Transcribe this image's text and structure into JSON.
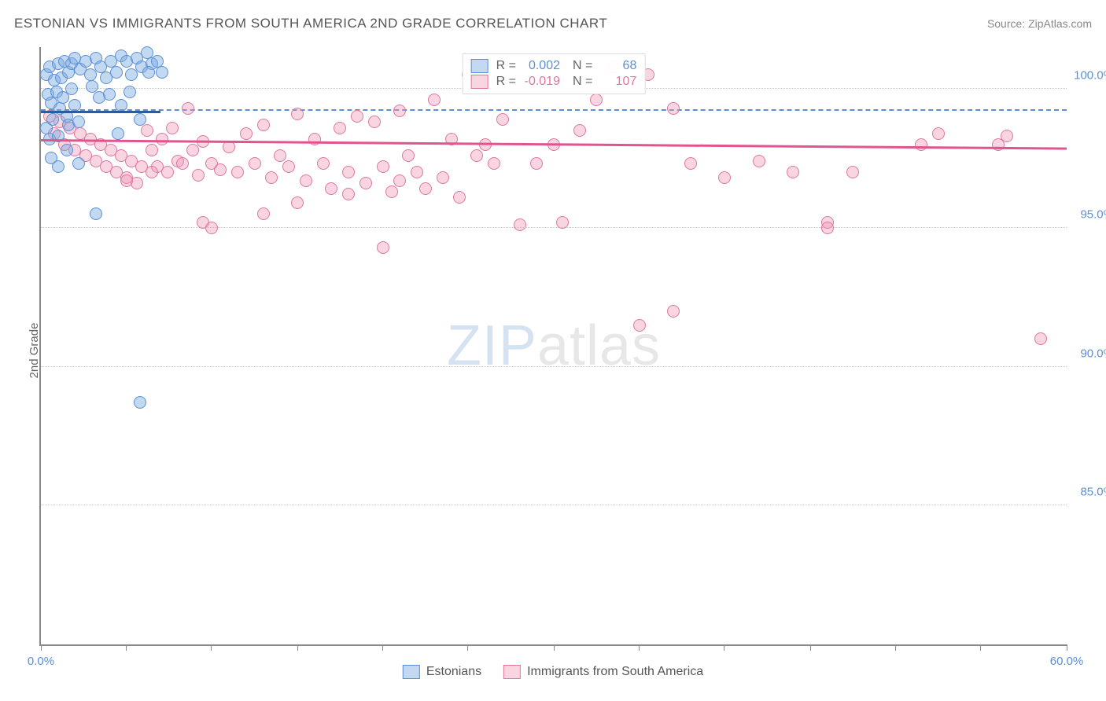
{
  "header": {
    "title": "ESTONIAN VS IMMIGRANTS FROM SOUTH AMERICA 2ND GRADE CORRELATION CHART",
    "source": "Source: ZipAtlas.com"
  },
  "ylabel": "2nd Grade",
  "watermark": {
    "zip": "ZIP",
    "atlas": "atlas"
  },
  "chart": {
    "type": "scatter",
    "xlim": [
      0,
      60
    ],
    "ylim": [
      80,
      101.5
    ],
    "xticks_pct": [
      0,
      8.3,
      16.6,
      25,
      33.3,
      41.6,
      50,
      58.3,
      66.6,
      75,
      83.3,
      91.6,
      100
    ],
    "xlabels": [
      {
        "pos_pct": 0,
        "text": "0.0%"
      },
      {
        "pos_pct": 100,
        "text": "60.0%"
      }
    ],
    "yticks": [
      {
        "value": 100,
        "text": "100.0%"
      },
      {
        "value": 95,
        "text": "95.0%"
      },
      {
        "value": 90,
        "text": "90.0%"
      },
      {
        "value": 85,
        "text": "85.0%"
      }
    ],
    "grid_color": "#cccccc",
    "background_color": "#ffffff"
  },
  "series": {
    "estonians": {
      "label": "Estonians",
      "fill": "rgba(120,170,225,0.45)",
      "stroke": "#5b8fd6",
      "trend_color": "#1f5fb0",
      "dash_color": "#5b8fd6",
      "trend": {
        "x1": 0,
        "y1": 99.2,
        "x2": 7,
        "y2": 99.2
      },
      "dash_y": 99.2,
      "points": [
        [
          0.3,
          100.5
        ],
        [
          0.5,
          100.8
        ],
        [
          0.8,
          100.3
        ],
        [
          1.0,
          100.9
        ],
        [
          1.2,
          100.4
        ],
        [
          1.4,
          101.0
        ],
        [
          1.6,
          100.6
        ],
        [
          1.8,
          100.9
        ],
        [
          2.0,
          101.1
        ],
        [
          2.3,
          100.7
        ],
        [
          2.6,
          101.0
        ],
        [
          2.9,
          100.5
        ],
        [
          3.2,
          101.1
        ],
        [
          3.5,
          100.8
        ],
        [
          3.8,
          100.4
        ],
        [
          4.1,
          101.0
        ],
        [
          4.4,
          100.6
        ],
        [
          4.7,
          101.2
        ],
        [
          5.0,
          101.0
        ],
        [
          5.3,
          100.5
        ],
        [
          5.6,
          101.1
        ],
        [
          5.9,
          100.8
        ],
        [
          6.2,
          101.3
        ],
        [
          6.5,
          100.9
        ],
        [
          6.8,
          101.0
        ],
        [
          7.1,
          100.6
        ],
        [
          0.4,
          99.8
        ],
        [
          0.6,
          99.5
        ],
        [
          0.9,
          99.9
        ],
        [
          1.1,
          99.3
        ],
        [
          1.3,
          99.7
        ],
        [
          1.5,
          99.0
        ],
        [
          1.8,
          100.0
        ],
        [
          2.0,
          99.4
        ],
        [
          0.3,
          98.6
        ],
        [
          0.5,
          98.2
        ],
        [
          0.7,
          98.9
        ],
        [
          1.0,
          98.3
        ],
        [
          1.6,
          98.7
        ],
        [
          2.2,
          98.8
        ],
        [
          3.0,
          100.1
        ],
        [
          3.4,
          99.7
        ],
        [
          4.0,
          99.8
        ],
        [
          4.7,
          99.4
        ],
        [
          5.2,
          99.9
        ],
        [
          5.8,
          98.9
        ],
        [
          6.3,
          100.6
        ],
        [
          0.6,
          97.5
        ],
        [
          1.0,
          97.2
        ],
        [
          1.5,
          97.8
        ],
        [
          2.2,
          97.3
        ],
        [
          4.5,
          98.4
        ],
        [
          3.2,
          95.5
        ],
        [
          5.8,
          88.7
        ]
      ]
    },
    "immigrants": {
      "label": "Immigrants from South America",
      "fill": "rgba(240,150,180,0.40)",
      "stroke": "#e077a0",
      "trend_color": "#e05590",
      "trend": {
        "x1": 0,
        "y1": 98.2,
        "x2": 60,
        "y2": 97.9
      },
      "points": [
        [
          0.5,
          99.0
        ],
        [
          0.8,
          98.4
        ],
        [
          1.1,
          98.8
        ],
        [
          1.4,
          98.0
        ],
        [
          1.7,
          98.6
        ],
        [
          2.0,
          97.8
        ],
        [
          2.3,
          98.4
        ],
        [
          2.6,
          97.6
        ],
        [
          2.9,
          98.2
        ],
        [
          3.2,
          97.4
        ],
        [
          3.5,
          98.0
        ],
        [
          3.8,
          97.2
        ],
        [
          4.1,
          97.8
        ],
        [
          4.4,
          97.0
        ],
        [
          4.7,
          97.6
        ],
        [
          5.0,
          96.8
        ],
        [
          5.3,
          97.4
        ],
        [
          5.6,
          96.6
        ],
        [
          5.9,
          97.2
        ],
        [
          6.2,
          98.5
        ],
        [
          6.5,
          97.8
        ],
        [
          6.8,
          97.2
        ],
        [
          7.1,
          98.2
        ],
        [
          7.4,
          97.0
        ],
        [
          7.7,
          98.6
        ],
        [
          8.0,
          97.4
        ],
        [
          8.3,
          97.3
        ],
        [
          8.6,
          99.3
        ],
        [
          8.9,
          97.8
        ],
        [
          9.2,
          96.9
        ],
        [
          9.5,
          98.1
        ],
        [
          10.0,
          97.3
        ],
        [
          10.5,
          97.1
        ],
        [
          11.0,
          97.9
        ],
        [
          11.5,
          97.0
        ],
        [
          12.0,
          98.4
        ],
        [
          12.5,
          97.3
        ],
        [
          13.0,
          98.7
        ],
        [
          13.5,
          96.8
        ],
        [
          14.0,
          97.6
        ],
        [
          14.5,
          97.2
        ],
        [
          15.0,
          99.1
        ],
        [
          15.5,
          96.7
        ],
        [
          16.0,
          98.2
        ],
        [
          16.5,
          97.3
        ],
        [
          17.0,
          96.4
        ],
        [
          17.5,
          98.6
        ],
        [
          18.0,
          97.0
        ],
        [
          18.5,
          99.0
        ],
        [
          19.0,
          96.6
        ],
        [
          19.5,
          98.8
        ],
        [
          20.0,
          97.2
        ],
        [
          20.5,
          96.3
        ],
        [
          21.0,
          99.2
        ],
        [
          21.5,
          97.6
        ],
        [
          22.0,
          97.0
        ],
        [
          22.5,
          96.4
        ],
        [
          23.0,
          99.6
        ],
        [
          23.5,
          96.8
        ],
        [
          24.0,
          98.2
        ],
        [
          24.5,
          96.1
        ],
        [
          25.0,
          100.5
        ],
        [
          25.5,
          97.6
        ],
        [
          26.0,
          98.0
        ],
        [
          26.5,
          97.3
        ],
        [
          27.0,
          98.9
        ],
        [
          28.0,
          95.1
        ],
        [
          29.0,
          97.3
        ],
        [
          30.0,
          98.0
        ],
        [
          30.5,
          95.2
        ],
        [
          31.5,
          98.5
        ],
        [
          32.5,
          99.6
        ],
        [
          33.5,
          100.8
        ],
        [
          35.5,
          100.5
        ],
        [
          37.0,
          99.3
        ],
        [
          38.0,
          97.3
        ],
        [
          40.0,
          96.8
        ],
        [
          42.0,
          97.4
        ],
        [
          44.0,
          97.0
        ],
        [
          46.0,
          95.2
        ],
        [
          47.5,
          97.0
        ],
        [
          51.5,
          98.0
        ],
        [
          52.5,
          98.4
        ],
        [
          56.0,
          98.0
        ],
        [
          56.5,
          98.3
        ],
        [
          9.5,
          95.2
        ],
        [
          13.0,
          95.5
        ],
        [
          15.0,
          95.9
        ],
        [
          18.0,
          96.2
        ],
        [
          21.0,
          96.7
        ],
        [
          20.0,
          94.3
        ],
        [
          10.0,
          95.0
        ],
        [
          37.0,
          92.0
        ],
        [
          35.0,
          91.5
        ],
        [
          46.0,
          95.0
        ],
        [
          5.0,
          96.7
        ],
        [
          6.5,
          97.0
        ],
        [
          58.5,
          91.0
        ]
      ]
    }
  },
  "stats": {
    "r_label": "R =",
    "n_label": "N =",
    "rows": [
      {
        "series": "estonians",
        "r": "0.002",
        "n": "68"
      },
      {
        "series": "immigrants",
        "r": "-0.019",
        "n": "107"
      }
    ]
  },
  "legend_bottom": {
    "items": [
      {
        "series": "estonians"
      },
      {
        "series": "immigrants"
      }
    ]
  }
}
